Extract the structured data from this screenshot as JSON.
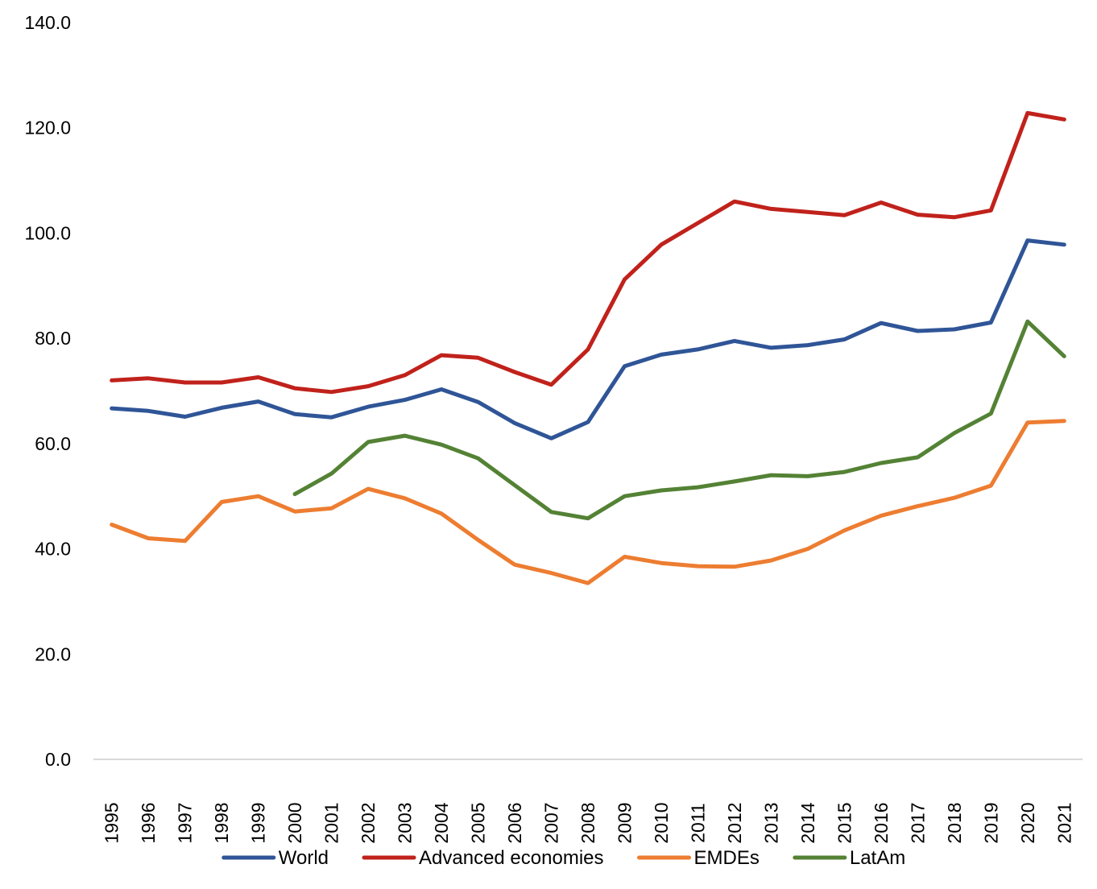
{
  "chart_data": {
    "type": "line",
    "title": "",
    "xlabel": "",
    "ylabel": "",
    "ylim": [
      0,
      140
    ],
    "yticks": [
      "0.0",
      "20.0",
      "40.0",
      "60.0",
      "80.0",
      "100.0",
      "120.0",
      "140.0"
    ],
    "grid": false,
    "legend_position": "bottom",
    "categories": [
      "1995",
      "1996",
      "1997",
      "1998",
      "1999",
      "2000",
      "2001",
      "2002",
      "2003",
      "2004",
      "2005",
      "2006",
      "2007",
      "2008",
      "2009",
      "2010",
      "2011",
      "2012",
      "2013",
      "2014",
      "2015",
      "2016",
      "2017",
      "2018",
      "2019",
      "2020",
      "2021"
    ],
    "series": [
      {
        "name": "World",
        "color": "#2F5597",
        "values": [
          66.7,
          66.2,
          65.1,
          66.8,
          68.0,
          65.6,
          65.0,
          67.0,
          68.3,
          70.3,
          67.9,
          63.9,
          61.0,
          64.1,
          74.7,
          76.9,
          77.9,
          79.5,
          78.2,
          78.7,
          79.8,
          82.9,
          81.4,
          81.7,
          83.0,
          98.6,
          97.8
        ]
      },
      {
        "name": "Advanced economies",
        "color": "#C0221B",
        "values": [
          72.0,
          72.4,
          71.6,
          71.6,
          72.6,
          70.5,
          69.8,
          70.9,
          73.0,
          76.8,
          76.3,
          73.6,
          71.2,
          77.9,
          91.2,
          97.8,
          101.9,
          106.0,
          104.6,
          104.0,
          103.4,
          105.8,
          103.5,
          103.0,
          104.3,
          122.8,
          121.6
        ]
      },
      {
        "name": "EMDEs",
        "color": "#ED7D31",
        "values": [
          44.6,
          42.0,
          41.5,
          48.9,
          50.0,
          47.1,
          47.7,
          51.4,
          49.6,
          46.7,
          41.7,
          37.0,
          35.4,
          33.5,
          38.5,
          37.3,
          36.7,
          36.6,
          37.8,
          40.0,
          43.5,
          46.3,
          48.1,
          49.7,
          52.0,
          64.0,
          64.3
        ]
      },
      {
        "name": "LatAm",
        "color": "#548235",
        "values": [
          null,
          null,
          null,
          null,
          null,
          50.4,
          54.3,
          60.3,
          61.5,
          59.8,
          57.2,
          52.1,
          47.0,
          45.8,
          50.0,
          51.1,
          51.7,
          52.8,
          54.0,
          53.8,
          54.6,
          56.3,
          57.4,
          62.0,
          65.7,
          83.2,
          76.6
        ]
      }
    ]
  }
}
